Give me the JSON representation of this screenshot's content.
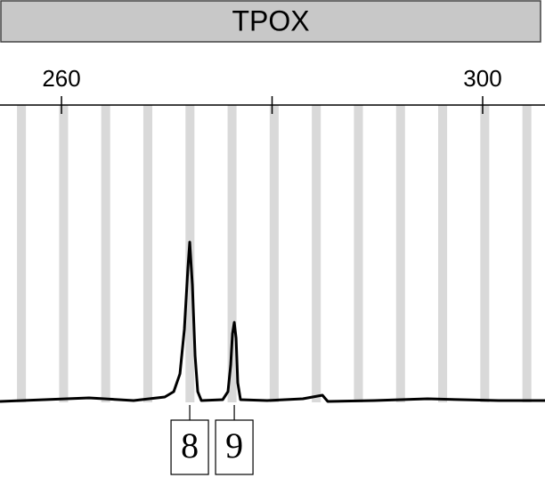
{
  "chart_data": {
    "type": "line",
    "title": "TPOX",
    "x": [
      254.16,
      258.39,
      262.62,
      266.85,
      269.81,
      270.66,
      271.25,
      271.67,
      272.01,
      272.18,
      272.43,
      272.69,
      272.94,
      273.28,
      275.31,
      275.81,
      276.07,
      276.24,
      276.41,
      276.58,
      276.74,
      277.0,
      279.53,
      282.92,
      284.78,
      285.29,
      289.68,
      294.76,
      301.52,
      305.92
    ],
    "values": [
      0.3,
      0.9,
      1.5,
      0.6,
      1.8,
      3.6,
      9.6,
      24.6,
      45.5,
      53.9,
      39.5,
      15.6,
      3.6,
      0.6,
      0.9,
      3.6,
      12.6,
      23.1,
      26.9,
      21.6,
      6.6,
      0.9,
      0.6,
      1.2,
      2.4,
      0.3,
      0.6,
      1.2,
      0.6,
      0.6
    ],
    "color": "#000000",
    "xlim": [
      254.16,
      305.92
    ],
    "ylim": [
      0,
      100
    ],
    "xticks": [
      260,
      300
    ],
    "minor_xticks": [
      280
    ],
    "bin_centers": [
      256.2,
      260.2,
      264.2,
      268.2,
      272.2,
      276.2,
      280.2,
      284.2,
      288.2,
      292.2,
      296.2,
      300.2,
      304.2
    ],
    "bin_width": 0.85,
    "bin_color": "#d9d9d9",
    "peaks": [
      {
        "label": "8",
        "x": 272.18
      },
      {
        "label": "9",
        "x": 276.41
      }
    ]
  }
}
